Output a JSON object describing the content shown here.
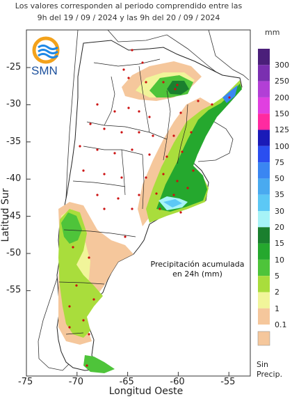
{
  "header": {
    "line1": "Los valores corresponden al periodo comprendido entre las",
    "line2": "9h del 19 / 09 / 2024  y las 9h del 20 / 09 / 2024"
  },
  "axes": {
    "ylabel": "Latitud Sur",
    "xlabel": "Longitud Oeste",
    "lat_ticks": [
      "-25",
      "-30",
      "-35",
      "-40",
      "-45",
      "-50",
      "-55"
    ],
    "lon_ticks": [
      "-75",
      "-70",
      "-65",
      "-60",
      "-55"
    ],
    "lat_range": [
      -55,
      -21
    ],
    "lon_range": [
      -75,
      -53
    ]
  },
  "logo": {
    "text": "SMN",
    "icon": "smn-logo-icon"
  },
  "note": {
    "line1": "Precipitación acumulada",
    "line2": "en 24h (mm)"
  },
  "legend": {
    "unit": "mm",
    "levels": [
      {
        "label": "300",
        "color": "#4b1f7a"
      },
      {
        "label": "250",
        "color": "#7a2fb0"
      },
      {
        "label": "200",
        "color": "#b23fd6"
      },
      {
        "label": "150",
        "color": "#e040e0"
      },
      {
        "label": "125",
        "color": "#ff2aa0"
      },
      {
        "label": "100",
        "color": "#1a1ab8"
      },
      {
        "label": "75",
        "color": "#2a4ef0"
      },
      {
        "label": "50",
        "color": "#3a86f2"
      },
      {
        "label": "35",
        "color": "#49aaf0"
      },
      {
        "label": "30",
        "color": "#5cc8f5"
      },
      {
        "label": "20",
        "color": "#a6f3f7"
      },
      {
        "label": "15",
        "color": "#1a7f2e"
      },
      {
        "label": "10",
        "color": "#25a82e"
      },
      {
        "label": "5",
        "color": "#4ec43a"
      },
      {
        "label": "2",
        "color": "#a9dd3c"
      },
      {
        "label": "1",
        "color": "#f1f59a"
      },
      {
        "label": "0.1",
        "color": "#f5c79c"
      }
    ],
    "no_precip_label_1": "Sin",
    "no_precip_label_2": "Precip."
  },
  "colors": {
    "land": "#ffffff",
    "ocean": "#ffffff",
    "border": "#222222",
    "station": "#cc1111"
  }
}
